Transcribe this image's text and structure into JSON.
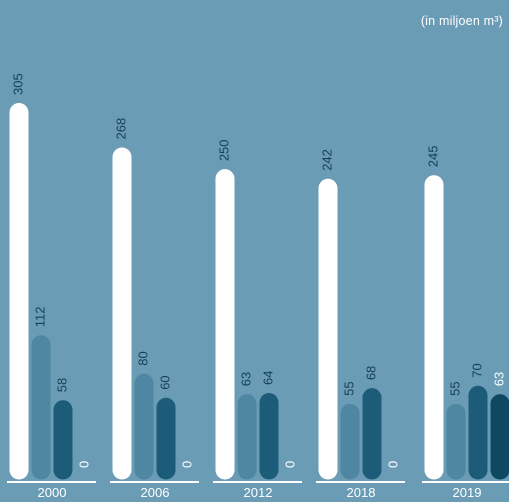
{
  "chart_data": {
    "type": "bar",
    "unit_label": "(in miljoen m³)",
    "categories": [
      "2000",
      "2006",
      "2012",
      "2018",
      "2019"
    ],
    "series": [
      {
        "values": [
          305,
          268,
          250,
          242,
          245
        ],
        "color": "#ffffff"
      },
      {
        "values": [
          112,
          80,
          63,
          55,
          55
        ],
        "color": "#4f86a2"
      },
      {
        "values": [
          58,
          60,
          64,
          68,
          70
        ],
        "color": "#1c5c78"
      },
      {
        "values": [
          0,
          0,
          0,
          0,
          63
        ],
        "color": "#0e4861"
      }
    ],
    "value_label_colors": [
      "#173e57",
      "#173e57",
      "#173e57",
      "#ffffff"
    ],
    "background": "#6a9db5",
    "ylim": [
      0,
      305
    ],
    "grid": false,
    "legend": "none"
  }
}
